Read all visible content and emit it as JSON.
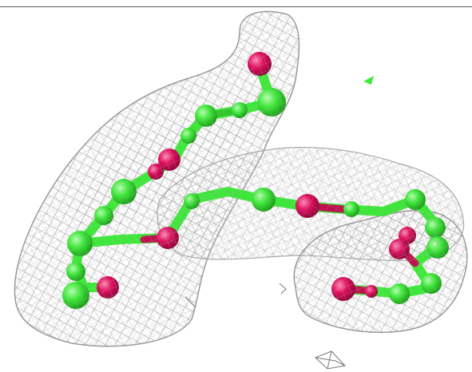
{
  "scene": {
    "background": "#ffffff",
    "mesh_color": "#8a8a8a",
    "mesh_light_color": "#cfcfcf",
    "carbon_color": "#3ee83a",
    "oxygen_color": "#e0105e",
    "top_border_color": "#5a5a5a"
  }
}
